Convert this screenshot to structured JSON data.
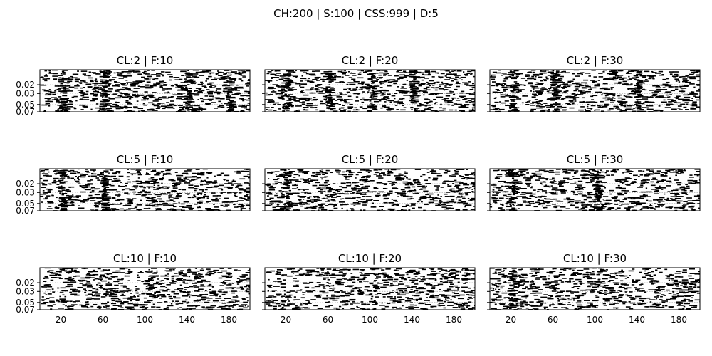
{
  "figure": {
    "suptitle": "CH:200 | S:100 | CSS:999 | D:5"
  },
  "chart_data": [
    {
      "type": "scatter",
      "title": "CL:2 | F:10",
      "seed": 11,
      "bands": [
        20,
        60,
        140,
        180
      ]
    },
    {
      "type": "scatter",
      "title": "CL:2 | F:20",
      "seed": 12,
      "bands": [
        20,
        60,
        100,
        140
      ]
    },
    {
      "type": "scatter",
      "title": "CL:2 | F:30",
      "seed": 13,
      "bands": [
        20,
        60,
        140
      ]
    },
    {
      "type": "scatter",
      "title": "CL:5 | F:10",
      "seed": 21,
      "bands": [
        20,
        60
      ]
    },
    {
      "type": "scatter",
      "title": "CL:5 | F:20",
      "seed": 22,
      "bands": [
        20
      ]
    },
    {
      "type": "scatter",
      "title": "CL:5 | F:30",
      "seed": 23,
      "bands": [
        20,
        100
      ]
    },
    {
      "type": "scatter",
      "title": "CL:10 | F:10",
      "seed": 31,
      "bands": []
    },
    {
      "type": "scatter",
      "title": "CL:10 | F:20",
      "seed": 32,
      "bands": []
    },
    {
      "type": "scatter",
      "title": "CL:10 | F:30",
      "seed": 33,
      "bands": [
        20
      ]
    }
  ],
  "axes": {
    "xlim": [
      0,
      200
    ],
    "ylim": [
      0.01,
      0.07
    ],
    "y_scale": "log",
    "x_ticks": [
      20,
      60,
      100,
      140,
      180
    ],
    "x_tick_labels": [
      "20",
      "60",
      "100",
      "140",
      "180"
    ],
    "y_ticks": [
      0.02,
      0.03,
      0.05,
      0.07
    ],
    "y_tick_labels": [
      "0.02",
      "0.03",
      "0.05",
      "0.07"
    ],
    "grid": true,
    "marker": "short horizontal dash",
    "marker_color": "#000000"
  }
}
